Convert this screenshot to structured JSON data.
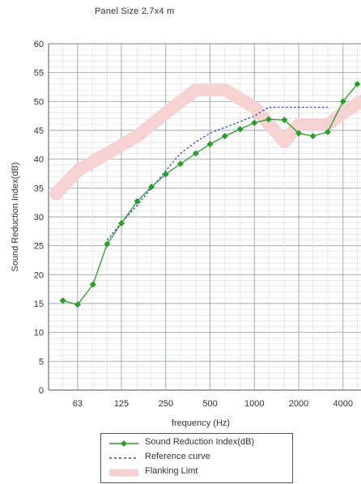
{
  "title": "Panel Size 2.7x4 m",
  "chart_data": {
    "type": "line",
    "xlabel": "frequency (Hz)",
    "ylabel": "Sound Reduction Index(dB)",
    "x_scale": "log",
    "x_ticks": [
      {
        "value": 63,
        "label": "63"
      },
      {
        "value": 125,
        "label": "125"
      },
      {
        "value": 250,
        "label": "250"
      },
      {
        "value": 500,
        "label": "500"
      },
      {
        "value": 1000,
        "label": "1000"
      },
      {
        "value": 2000,
        "label": "2000"
      },
      {
        "value": 4000,
        "label": "4000"
      }
    ],
    "xlim": [
      40,
      5300
    ],
    "ylim": [
      0,
      60
    ],
    "yticks": [
      0,
      5,
      10,
      15,
      20,
      25,
      30,
      35,
      40,
      45,
      50,
      55,
      60
    ],
    "grid": true,
    "series": [
      {
        "name": "Sound Reduction Index(dB)",
        "color": "#2e9a2e",
        "style": "solid-diamond-markers",
        "x": [
          50,
          63,
          80,
          100,
          125,
          160,
          200,
          250,
          315,
          400,
          500,
          630,
          800,
          1000,
          1250,
          1600,
          2000,
          2500,
          3150,
          4000,
          5000
        ],
        "y": [
          15.5,
          14.8,
          18.3,
          25.3,
          28.9,
          32.7,
          35.2,
          37.4,
          39.2,
          41.0,
          42.6,
          44.0,
          45.2,
          46.3,
          46.9,
          46.8,
          44.5,
          44.0,
          44.7,
          50.0,
          53.0
        ]
      },
      {
        "name": "Reference curve",
        "color": "#3344cc",
        "style": "dotted",
        "x": [
          100,
          125,
          160,
          200,
          250,
          315,
          400,
          500,
          630,
          800,
          1000,
          1250,
          1600,
          2000,
          2500,
          3150
        ],
        "y": [
          26,
          29,
          32,
          35,
          38,
          41,
          43,
          44.5,
          45.5,
          46.5,
          47.5,
          49,
          49,
          49,
          49,
          49
        ]
      },
      {
        "name": "Flanking Limt",
        "color": "#f6d2d2",
        "style": "thick-band",
        "x": [
          45,
          63,
          100,
          160,
          250,
          400,
          630,
          1000,
          1600,
          2000,
          2500,
          3150,
          4000,
          5300
        ],
        "y": [
          34,
          38,
          41,
          44,
          48,
          52,
          52,
          49,
          43,
          46,
          46,
          46,
          48,
          50
        ]
      }
    ],
    "legend_position": "bottom"
  }
}
